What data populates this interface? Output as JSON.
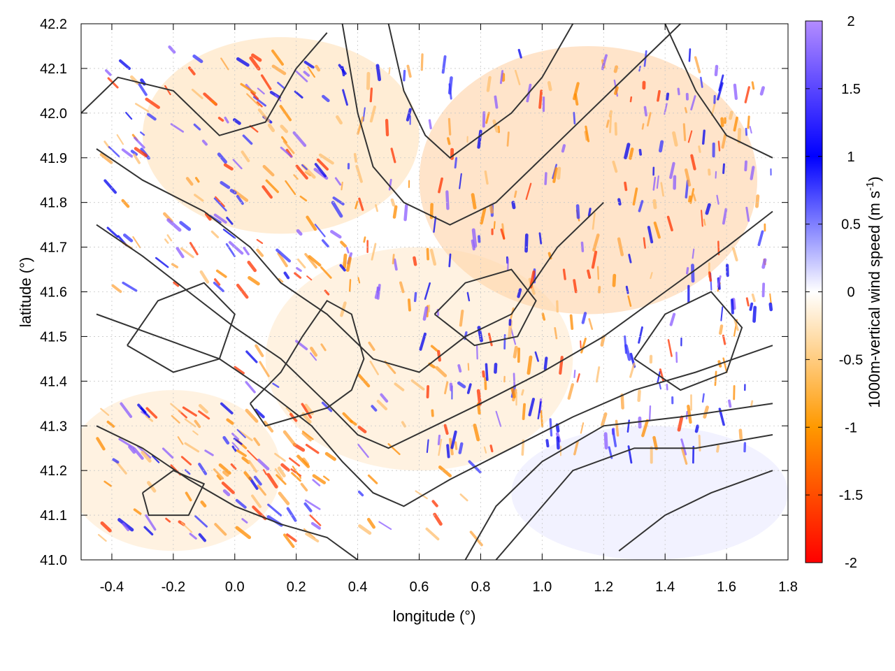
{
  "chart_data": {
    "type": "heatmap",
    "title": "",
    "xlabel": "longitude (°)",
    "ylabel": "latitude (°)",
    "xlim": [
      -0.5,
      1.8
    ],
    "ylim": [
      41.0,
      42.2
    ],
    "xticks": [
      "-0.4",
      "-0.2",
      "0.0",
      "0.2",
      "0.4",
      "0.6",
      "0.8",
      "1.0",
      "1.2",
      "1.4",
      "1.6",
      "1.8"
    ],
    "yticks": [
      "41.0",
      "41.1",
      "41.2",
      "41.3",
      "41.4",
      "41.5",
      "41.6",
      "41.7",
      "41.8",
      "41.9",
      "42.0",
      "42.1",
      "42.2"
    ],
    "grid": true,
    "colorbar": {
      "label": "1000m-vertical wind speed (m s",
      "label_superscript": "-1",
      "label_suffix": ")",
      "range": [
        -2,
        2
      ],
      "ticks": [
        "2",
        "1.5",
        "1",
        "0.5",
        "0",
        "-0.5",
        "-1",
        "-1.5",
        "-2"
      ],
      "colors": [
        "#ff0000",
        "#ff9900",
        "#ffffff",
        "#0000ff",
        "#b38cff"
      ]
    },
    "overlay": "terrain elevation contour lines (black)"
  }
}
